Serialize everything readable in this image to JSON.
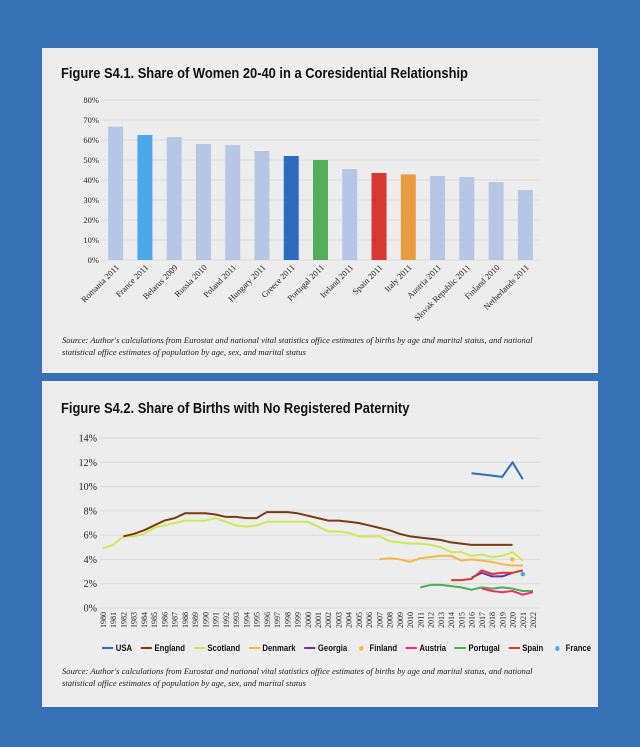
{
  "chart_data": [
    {
      "type": "bar",
      "title": "Figure S4.1. Share of Women 20-40 in a Coresidential Relationship",
      "categories": [
        "Romania 2011",
        "France 2011",
        "Belarus 2009",
        "Russia 2010",
        "Poland 2011",
        "Hungary 2011",
        "Greece 2011",
        "Portugal 2011",
        "Ireland 2011",
        "Spain 2011",
        "Italy 2011",
        "Austria 2011",
        "Slovak Republic 2011",
        "Finland 2010",
        "Netherlands 2011"
      ],
      "values": [
        66.7,
        62.5,
        61.5,
        58,
        57.5,
        54.5,
        52,
        50,
        45.5,
        43.5,
        42.8,
        42,
        41.5,
        39,
        35
      ],
      "colors": [
        "#b7c6e4",
        "#4ca8e8",
        "#b7c6e4",
        "#b7c6e4",
        "#b7c6e4",
        "#b7c6e4",
        "#2d6cbc",
        "#52ae5b",
        "#b7c6e4",
        "#d93731",
        "#e99c3e",
        "#b7c6e4",
        "#b7c6e4",
        "#b7c6e4",
        "#b7c6e4"
      ],
      "yticks": [
        "0%",
        "10%",
        "20%",
        "30%",
        "40%",
        "50%",
        "60%",
        "70%",
        "80%"
      ],
      "ylim": [
        0,
        80
      ],
      "grid": true,
      "source": "Source: Author's calculations from Eurostat and national vital statistics office estimates of births by age and marital status, and national statistical office estimates of population by age, sex, and marital status"
    },
    {
      "type": "line",
      "title": "Figure S4.2. Share of Births with No Registered Paternity",
      "x": [
        1980,
        1981,
        1982,
        1983,
        1984,
        1985,
        1986,
        1987,
        1988,
        1989,
        1990,
        1991,
        1992,
        1993,
        1994,
        1995,
        1996,
        1997,
        1998,
        1999,
        2000,
        2001,
        2002,
        2003,
        2004,
        2005,
        2006,
        2007,
        2008,
        2009,
        2010,
        2011,
        2012,
        2013,
        2014,
        2015,
        2016,
        2017,
        2018,
        2019,
        2020,
        2021,
        2022
      ],
      "xticks": [
        "1980",
        "1981",
        "1982",
        "1983",
        "1984",
        "1985",
        "1986",
        "1987",
        "1988",
        "1989",
        "1990",
        "1991",
        "1992",
        "1993",
        "1994",
        "1995",
        "1996",
        "1997",
        "1998",
        "1999",
        "2000",
        "2001",
        "2002",
        "2003",
        "2004",
        "2005",
        "2006",
        "2007",
        "2008",
        "2009",
        "2010",
        "2011",
        "2012",
        "2013",
        "2014",
        "2015",
        "2016",
        "2017",
        "2018",
        "2019",
        "2020",
        "2021",
        "2022"
      ],
      "yticks": [
        "0%",
        "2%",
        "4%",
        "6%",
        "8%",
        "10%",
        "12%",
        "14%"
      ],
      "ylim": [
        0,
        14
      ],
      "grid": true,
      "legend_position": "bottom",
      "series": [
        {
          "name": "USA",
          "color": "#2d6cbc",
          "marker": "line",
          "points": [
            [
              2016,
              11.1
            ],
            [
              2017,
              11.0
            ],
            [
              2018,
              10.9
            ],
            [
              2019,
              10.8
            ],
            [
              2020,
              12.0
            ],
            [
              2021,
              10.6
            ]
          ]
        },
        {
          "name": "England",
          "color": "#7b3b12",
          "marker": "line",
          "points": [
            [
              1982,
              5.9
            ],
            [
              1983,
              6.1
            ],
            [
              1984,
              6.4
            ],
            [
              1985,
              6.8
            ],
            [
              1986,
              7.2
            ],
            [
              1987,
              7.4
            ],
            [
              1988,
              7.8
            ],
            [
              1989,
              7.8
            ],
            [
              1990,
              7.8
            ],
            [
              1991,
              7.7
            ],
            [
              1992,
              7.5
            ],
            [
              1993,
              7.5
            ],
            [
              1994,
              7.4
            ],
            [
              1995,
              7.4
            ],
            [
              1996,
              7.9
            ],
            [
              1997,
              7.9
            ],
            [
              1998,
              7.9
            ],
            [
              1999,
              7.8
            ],
            [
              2000,
              7.6
            ],
            [
              2001,
              7.4
            ],
            [
              2002,
              7.2
            ],
            [
              2003,
              7.2
            ],
            [
              2004,
              7.1
            ],
            [
              2005,
              7.0
            ],
            [
              2006,
              6.8
            ],
            [
              2007,
              6.6
            ],
            [
              2008,
              6.4
            ],
            [
              2009,
              6.1
            ],
            [
              2010,
              5.9
            ],
            [
              2011,
              5.8
            ],
            [
              2012,
              5.7
            ],
            [
              2013,
              5.6
            ],
            [
              2014,
              5.4
            ],
            [
              2015,
              5.3
            ],
            [
              2016,
              5.2
            ],
            [
              2017,
              5.2
            ],
            [
              2018,
              5.2
            ],
            [
              2019,
              5.2
            ],
            [
              2020,
              5.2
            ]
          ]
        },
        {
          "name": "Scotland",
          "color": "#cdea55",
          "marker": "line",
          "points": [
            [
              1980,
              4.9
            ],
            [
              1981,
              5.2
            ],
            [
              1982,
              5.9
            ],
            [
              1983,
              5.9
            ],
            [
              1984,
              6.1
            ],
            [
              1985,
              6.6
            ],
            [
              1986,
              6.8
            ],
            [
              1987,
              7.0
            ],
            [
              1988,
              7.2
            ],
            [
              1989,
              7.2
            ],
            [
              1990,
              7.2
            ],
            [
              1991,
              7.4
            ],
            [
              1992,
              7.1
            ],
            [
              1993,
              6.8
            ],
            [
              1994,
              6.7
            ],
            [
              1995,
              6.8
            ],
            [
              1996,
              7.1
            ],
            [
              1997,
              7.1
            ],
            [
              1998,
              7.1
            ],
            [
              1999,
              7.1
            ],
            [
              2000,
              7.1
            ],
            [
              2001,
              6.7
            ],
            [
              2002,
              6.3
            ],
            [
              2003,
              6.3
            ],
            [
              2004,
              6.2
            ],
            [
              2005,
              5.9
            ],
            [
              2006,
              5.9
            ],
            [
              2007,
              5.9
            ],
            [
              2008,
              5.5
            ],
            [
              2009,
              5.4
            ],
            [
              2010,
              5.3
            ],
            [
              2011,
              5.3
            ],
            [
              2012,
              5.2
            ],
            [
              2013,
              5.0
            ],
            [
              2014,
              4.6
            ],
            [
              2015,
              4.6
            ],
            [
              2016,
              4.3
            ],
            [
              2017,
              4.4
            ],
            [
              2018,
              4.2
            ],
            [
              2019,
              4.3
            ],
            [
              2020,
              4.6
            ],
            [
              2021,
              3.9
            ]
          ]
        },
        {
          "name": "Denmark",
          "color": "#f4b942",
          "marker": "line",
          "points": [
            [
              2007,
              4.0
            ],
            [
              2008,
              4.1
            ],
            [
              2009,
              4.0
            ],
            [
              2010,
              3.8
            ],
            [
              2011,
              4.1
            ],
            [
              2012,
              4.2
            ],
            [
              2013,
              4.3
            ],
            [
              2014,
              4.3
            ],
            [
              2015,
              3.9
            ],
            [
              2016,
              4.0
            ],
            [
              2017,
              3.9
            ],
            [
              2018,
              3.8
            ],
            [
              2019,
              3.6
            ],
            [
              2020,
              3.5
            ],
            [
              2021,
              3.5
            ]
          ]
        },
        {
          "name": "Georgia",
          "color": "#6a35a6",
          "marker": "line",
          "points": [
            [
              2016,
              2.5
            ],
            [
              2017,
              2.9
            ],
            [
              2018,
              2.6
            ],
            [
              2019,
              2.6
            ],
            [
              2020,
              2.9
            ]
          ]
        },
        {
          "name": "Finland",
          "color": "#f4b942",
          "marker": "dot",
          "points": [
            [
              2020,
              4.0
            ]
          ]
        },
        {
          "name": "Austria",
          "color": "#e8307a",
          "marker": "line",
          "points": [
            [
              2017,
              1.6
            ],
            [
              2018,
              1.4
            ],
            [
              2019,
              1.3
            ],
            [
              2020,
              1.4
            ],
            [
              2021,
              1.1
            ],
            [
              2022,
              1.3
            ]
          ]
        },
        {
          "name": "Portugal",
          "color": "#4caf50",
          "marker": "line",
          "points": [
            [
              2011,
              1.7
            ],
            [
              2012,
              1.9
            ],
            [
              2013,
              1.9
            ],
            [
              2014,
              1.8
            ],
            [
              2015,
              1.7
            ],
            [
              2016,
              1.5
            ],
            [
              2017,
              1.7
            ],
            [
              2018,
              1.6
            ],
            [
              2019,
              1.7
            ],
            [
              2020,
              1.6
            ],
            [
              2021,
              1.4
            ],
            [
              2022,
              1.4
            ]
          ]
        },
        {
          "name": "Spain",
          "color": "#d93731",
          "marker": "line",
          "points": [
            [
              2014,
              2.3
            ],
            [
              2015,
              2.3
            ],
            [
              2016,
              2.4
            ],
            [
              2017,
              3.1
            ],
            [
              2018,
              2.8
            ],
            [
              2019,
              2.9
            ],
            [
              2020,
              2.9
            ],
            [
              2021,
              3.1
            ]
          ]
        },
        {
          "name": "France",
          "color": "#4ca8e8",
          "marker": "dot",
          "points": [
            [
              2021,
              2.8
            ]
          ]
        }
      ],
      "source": "Source: Author's calculations from Eurostat and national vital statistics office estimates of births by age and marital status, and national statistical office estimates of population by age, sex, and marital status"
    }
  ]
}
